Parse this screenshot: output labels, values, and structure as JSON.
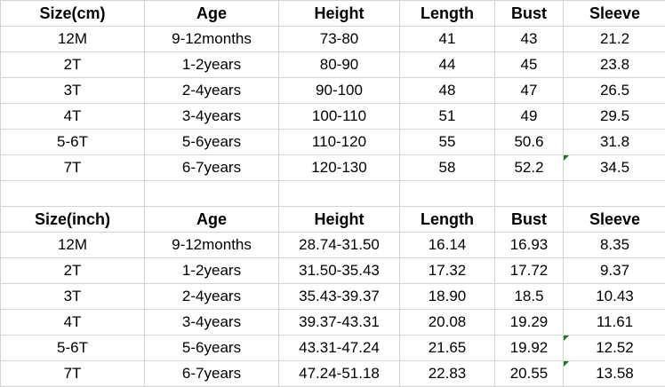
{
  "tables": [
    {
      "headers": [
        "Size(cm)",
        "Age",
        "Height",
        "Length",
        "Bust",
        "Sleeve"
      ],
      "rows": [
        [
          "12M",
          "9-12months",
          "73-80",
          "41",
          "43",
          "21.2"
        ],
        [
          "2T",
          "1-2years",
          "80-90",
          "44",
          "45",
          "23.8"
        ],
        [
          "3T",
          "2-4years",
          "90-100",
          "48",
          "47",
          "26.5"
        ],
        [
          "4T",
          "3-4years",
          "100-110",
          "51",
          "49",
          "29.5"
        ],
        [
          "5-6T",
          "5-6years",
          "110-120",
          "55",
          "50.6",
          "31.8"
        ],
        [
          "7T",
          "6-7years",
          "120-130",
          "58",
          "52.2",
          "34.5"
        ]
      ],
      "flagged_cells": [
        [
          5,
          5
        ]
      ]
    },
    {
      "headers": [
        "Size(inch)",
        "Age",
        "Height",
        "Length",
        "Bust",
        "Sleeve"
      ],
      "rows": [
        [
          "12M",
          "9-12months",
          "28.74-31.50",
          "16.14",
          "16.93",
          "8.35"
        ],
        [
          "2T",
          "1-2years",
          "31.50-35.43",
          "17.32",
          "17.72",
          "9.37"
        ],
        [
          "3T",
          "2-4years",
          "35.43-39.37",
          "18.90",
          "18.5",
          "10.43"
        ],
        [
          "4T",
          "3-4years",
          "39.37-43.31",
          "20.08",
          "19.29",
          "11.61"
        ],
        [
          "5-6T",
          "5-6years",
          "43.31-47.24",
          "21.65",
          "19.92",
          "12.52"
        ],
        [
          "7T",
          "6-7years",
          "47.24-51.18",
          "22.83",
          "20.55",
          "13.58"
        ]
      ],
      "flagged_cells": [
        [
          4,
          5
        ],
        [
          5,
          5
        ]
      ]
    }
  ],
  "colors": {
    "grid": "#d4d4d4",
    "error_flag": "#1a7a1a"
  }
}
